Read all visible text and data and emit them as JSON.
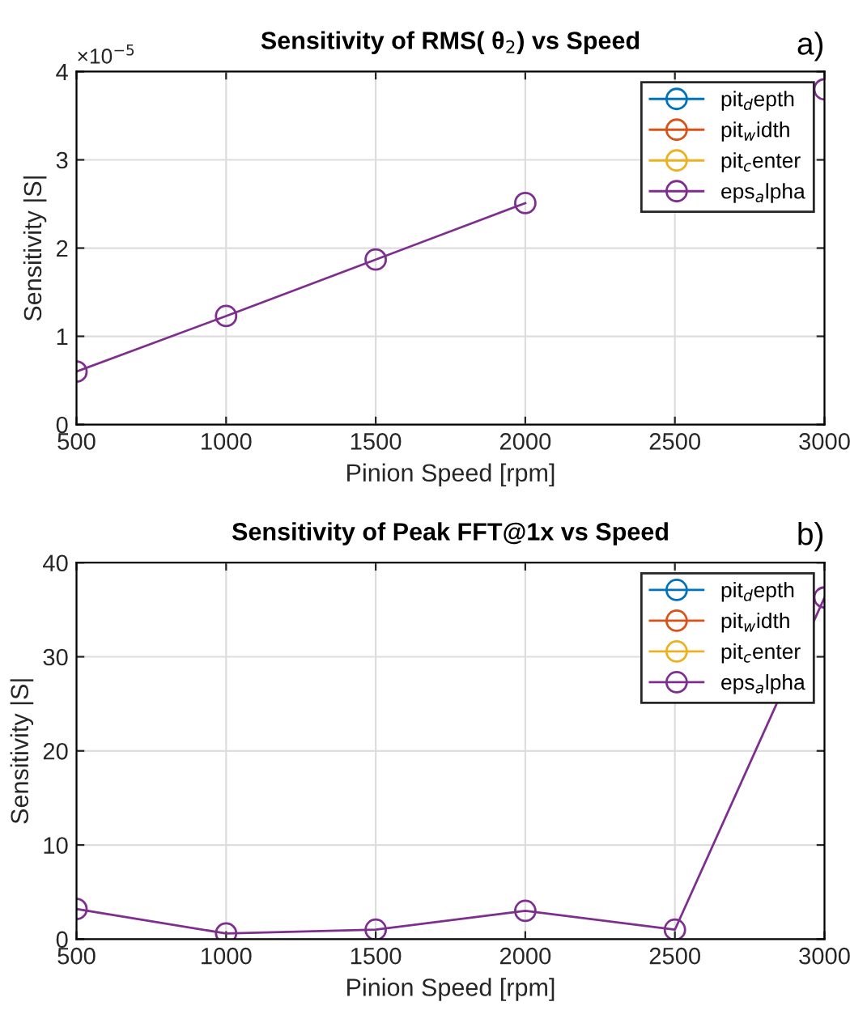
{
  "chart_data": [
    {
      "type": "line",
      "title": "Sensitivity of RMS( θ$_{2}$) vs Speed",
      "xlabel": "Pinion Speed [rpm]",
      "ylabel": "Sensitivity |S|",
      "x": [
        500,
        1000,
        1500,
        2000,
        2500,
        3000
      ],
      "series": [
        {
          "name": "pit$_{d}$epth",
          "color": "#0072bd",
          "values": [
            null,
            null,
            null,
            null,
            null,
            null
          ]
        },
        {
          "name": "pit$_{w}$idth",
          "color": "#d95319",
          "values": [
            null,
            null,
            null,
            null,
            null,
            null
          ]
        },
        {
          "name": "pit$_{c}$enter",
          "color": "#edb120",
          "values": [
            null,
            null,
            null,
            null,
            null,
            null
          ]
        },
        {
          "name": "eps$_{a}$lpha",
          "color": "#7e2f8e",
          "values": [
            0.6,
            1.23,
            1.87,
            2.51,
            null,
            3.8
          ]
        }
      ],
      "xlim": [
        500,
        3000
      ],
      "xticks": [
        500,
        1000,
        1500,
        2000,
        2500,
        3000
      ],
      "ylim": [
        0,
        4
      ],
      "yticks": [
        0,
        1,
        2,
        3,
        4
      ],
      "annotations": [
        "a)",
        "×10$^{−5}$"
      ],
      "grid": true,
      "legend": "top right",
      "marker": "circle",
      "line_style": "solid"
    },
    {
      "type": "line",
      "title": "Sensitivity of Peak FFT@1x vs Speed",
      "xlabel": "Pinion Speed [rpm]",
      "ylabel": "Sensitivity |S|",
      "x": [
        500,
        1000,
        1500,
        2000,
        2500,
        3000
      ],
      "series": [
        {
          "name": "pit$_{d}$epth",
          "color": "#0072bd",
          "values": [
            null,
            null,
            null,
            null,
            null,
            null
          ]
        },
        {
          "name": "pit$_{w}$idth",
          "color": "#d95319",
          "values": [
            null,
            null,
            null,
            null,
            null,
            null
          ]
        },
        {
          "name": "pit$_{c}$enter",
          "color": "#edb120",
          "values": [
            null,
            null,
            null,
            null,
            null,
            null
          ]
        },
        {
          "name": "eps$_{a}$lpha",
          "color": "#7e2f8e",
          "values": [
            3.2,
            0.6,
            1.0,
            3.0,
            1.0,
            36.3
          ]
        }
      ],
      "xlim": [
        500,
        3000
      ],
      "xticks": [
        500,
        1000,
        1500,
        2000,
        2500,
        3000
      ],
      "ylim": [
        0,
        40
      ],
      "yticks": [
        0,
        10,
        20,
        30,
        40
      ],
      "annotations": [
        "b)"
      ],
      "grid": true,
      "legend": "top right",
      "marker": "circle",
      "line_style": "solid"
    }
  ]
}
